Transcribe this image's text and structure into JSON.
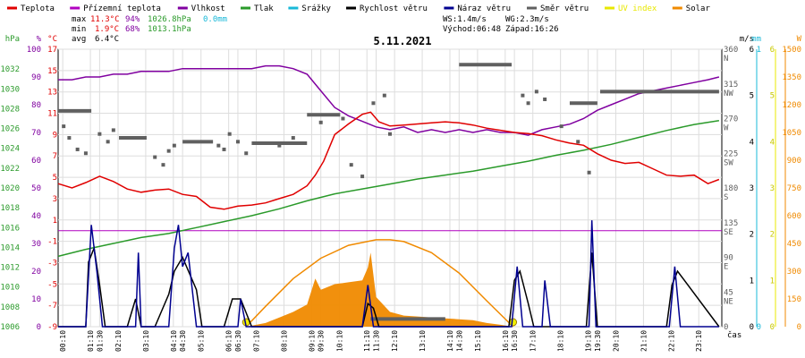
{
  "legend": [
    {
      "label": "Teplota",
      "color": "#e00000"
    },
    {
      "label": "Přízemní teplota",
      "color": "#b000c0"
    },
    {
      "label": "Vlhkost",
      "color": "#8000a0"
    },
    {
      "label": "Tlak",
      "color": "#2a9a2a"
    },
    {
      "label": "Srážky",
      "color": "#18b8d8"
    },
    {
      "label": "Rychlost větru",
      "color": "#000000"
    },
    {
      "label": "Náraz větru",
      "color": "#000090"
    },
    {
      "label": "Směr větru",
      "color": "#606060"
    },
    {
      "label": "UV index",
      "color": "#e8e800"
    },
    {
      "label": "Solar",
      "color": "#f08a00"
    }
  ],
  "stats": {
    "max_label": "max",
    "max_temp": "11.3°C",
    "max_hum": "94%",
    "max_press": "1026.8hPa",
    "max_rain": "0.0mm",
    "min_label": "min",
    "min_temp": "1.9°C",
    "min_hum": "68%",
    "min_press": "1013.1hPa",
    "avg_label": "avg",
    "avg_temp": "6.4°C",
    "ws": "WS:1.4m/s",
    "wg": "WG:2.3m/s",
    "sunrise": "Východ:06:48",
    "sunset": "Západ:16:26"
  },
  "chart_data": {
    "type": "line",
    "title": "5.11.2021",
    "xlabel": "čas",
    "x_ticks": [
      "00:10",
      "01:10",
      "01:30",
      "02:10",
      "03:10",
      "04:10",
      "04:30",
      "05:10",
      "06:10",
      "06:30",
      "07:10",
      "08:10",
      "09:10",
      "09:30",
      "10:10",
      "11:10",
      "11:30",
      "12:10",
      "13:10",
      "14:10",
      "14:30",
      "15:10",
      "16:10",
      "16:30",
      "17:10",
      "18:10",
      "19:10",
      "19:30",
      "20:10",
      "21:10",
      "22:10",
      "23:10"
    ],
    "axes": {
      "hpa": {
        "label": "hPa",
        "ticks": [
          "1006",
          "1008",
          "1010",
          "1012",
          "1014",
          "1016",
          "1018",
          "1020",
          "1022",
          "1024",
          "1026",
          "1028",
          "1030",
          "1032"
        ],
        "range": [
          1006,
          1034
        ]
      },
      "percent": {
        "label": "%",
        "ticks": [
          "0",
          "10",
          "20",
          "30",
          "40",
          "50",
          "60",
          "70",
          "80",
          "90",
          "100"
        ],
        "range": [
          0,
          100
        ]
      },
      "celsius": {
        "label": "°C",
        "ticks": [
          "-9",
          "-7",
          "-5",
          "-3",
          "-1",
          "1",
          "3",
          "5",
          "7",
          "9",
          "11",
          "13",
          "15",
          "17"
        ],
        "range": [
          -9,
          17
        ]
      },
      "direction": {
        "ticks": [
          "0",
          "45\nNE",
          "90\nE",
          "135\nSE",
          "180\nS",
          "225\nSW",
          "270\nW",
          "315\nNW",
          "360\nN"
        ],
        "range": [
          0,
          360
        ]
      },
      "ms": {
        "label": "m/s",
        "ticks": [
          "0",
          "1",
          "2",
          "3",
          "4",
          "5",
          "6"
        ],
        "range": [
          0,
          6
        ]
      },
      "mm": {
        "label": "mm",
        "ticks": [
          "0",
          "1"
        ],
        "range": [
          0,
          1
        ]
      },
      "uv": {
        "label": "",
        "ticks": [
          "0",
          "1",
          "2",
          "3",
          "4",
          "5",
          "6"
        ],
        "range": [
          0,
          6
        ]
      },
      "solar": {
        "label": "W",
        "ticks": [
          "0",
          "150",
          "300",
          "450",
          "600",
          "750",
          "900",
          "1050",
          "1200",
          "1350",
          "1500"
        ],
        "range": [
          0,
          1500
        ]
      }
    },
    "series": [
      {
        "name": "Teplota",
        "unit": "°C",
        "color": "#e00000",
        "x": [
          0,
          0.5,
          1,
          1.5,
          2,
          2.5,
          3,
          3.5,
          4,
          4.5,
          5,
          5.5,
          6,
          6.5,
          7,
          7.5,
          8,
          8.5,
          9,
          9.3,
          9.6,
          10,
          10.5,
          11,
          11.3,
          11.6,
          12,
          12.5,
          13,
          13.5,
          14,
          14.5,
          15,
          15.5,
          16,
          16.5,
          17,
          17.5,
          18,
          18.5,
          19,
          19.5,
          20,
          20.5,
          21,
          21.5,
          22,
          22.5,
          23,
          23.5,
          23.9
        ],
        "y": [
          4.4,
          4.0,
          4.5,
          5.1,
          4.6,
          3.9,
          3.6,
          3.8,
          3.9,
          3.4,
          3.2,
          2.2,
          2.0,
          2.3,
          2.4,
          2.6,
          3.0,
          3.4,
          4.2,
          5.2,
          6.5,
          9.0,
          10.0,
          10.9,
          11.1,
          10.2,
          9.8,
          9.9,
          10.0,
          10.1,
          10.2,
          10.1,
          9.9,
          9.6,
          9.4,
          9.2,
          9.1,
          8.9,
          8.5,
          8.2,
          8.0,
          7.2,
          6.6,
          6.3,
          6.4,
          5.8,
          5.2,
          5.1,
          5.2,
          4.4,
          4.8
        ]
      },
      {
        "name": "Vlhkost",
        "unit": "%",
        "color": "#8000a0",
        "x": [
          0,
          0.5,
          1,
          1.5,
          2,
          2.5,
          3,
          3.5,
          4,
          4.5,
          5,
          5.5,
          6,
          6.5,
          7,
          7.5,
          8,
          8.5,
          9,
          9.5,
          10,
          10.5,
          11,
          11.5,
          12,
          12.5,
          13,
          13.5,
          14,
          14.5,
          15,
          15.5,
          16,
          16.5,
          17,
          17.5,
          18,
          18.5,
          19,
          19.5,
          20,
          20.5,
          21,
          21.5,
          22,
          22.5,
          23,
          23.5,
          23.9
        ],
        "y": [
          89,
          89,
          90,
          90,
          91,
          91,
          92,
          92,
          92,
          93,
          93,
          93,
          93,
          93,
          93,
          94,
          94,
          93,
          91,
          85,
          79,
          76,
          74,
          72,
          71,
          72,
          70,
          71,
          70,
          71,
          70,
          71,
          70,
          70,
          69,
          71,
          72,
          73,
          75,
          78,
          80,
          82,
          84,
          85,
          86,
          87,
          88,
          89,
          90
        ]
      },
      {
        "name": "Tlak",
        "unit": "hPa",
        "color": "#2a9a2a",
        "x": [
          0,
          1,
          2,
          3,
          4,
          5,
          6,
          7,
          8,
          9,
          10,
          11,
          12,
          13,
          14,
          15,
          16,
          17,
          18,
          19,
          20,
          21,
          22,
          23,
          23.9
        ],
        "y": [
          1013.1,
          1013.8,
          1014.4,
          1015.0,
          1015.4,
          1016.0,
          1016.6,
          1017.2,
          1017.9,
          1018.7,
          1019.4,
          1019.9,
          1020.4,
          1020.9,
          1021.3,
          1021.7,
          1022.2,
          1022.7,
          1023.3,
          1023.8,
          1024.4,
          1025.1,
          1025.8,
          1026.4,
          1026.8
        ]
      },
      {
        "name": "Rychlost větru",
        "unit": "m/s",
        "color": "#000000",
        "x": [
          0,
          1.0,
          1.1,
          1.3,
          1.5,
          1.7,
          2.0,
          2.5,
          2.8,
          3.0,
          3.5,
          4.0,
          4.2,
          4.5,
          5.0,
          5.2,
          6.0,
          6.3,
          6.6,
          7.0,
          11.0,
          11.2,
          11.4,
          11.6,
          16.3,
          16.5,
          16.7,
          17.0,
          17.2,
          19.1,
          19.3,
          19.5,
          22.0,
          22.2,
          22.4,
          23.9
        ],
        "y": [
          0,
          0,
          1.4,
          1.7,
          0.9,
          0,
          0,
          0,
          0.6,
          0,
          0,
          0.7,
          1.2,
          1.5,
          0.8,
          0,
          0,
          0.6,
          0.6,
          0,
          0,
          0.5,
          0.4,
          0,
          0,
          1.0,
          1.2,
          0.5,
          0,
          0,
          1.6,
          0,
          0,
          0.9,
          1.2,
          0
        ]
      },
      {
        "name": "Náraz větru",
        "unit": "m/s",
        "color": "#000090",
        "x": [
          0,
          1.0,
          1.2,
          1.4,
          1.6,
          2.8,
          2.9,
          3.0,
          4.0,
          4.2,
          4.35,
          4.5,
          4.7,
          5.0,
          6.5,
          6.6,
          6.8,
          11.0,
          11.2,
          11.4,
          16.4,
          16.6,
          16.8,
          17.5,
          17.6,
          17.8,
          19.2,
          19.3,
          19.45,
          22.1,
          22.3,
          22.5,
          23.9
        ],
        "y": [
          0,
          0,
          2.2,
          1.2,
          0,
          0,
          1.6,
          0,
          0,
          1.7,
          2.2,
          1.3,
          1.6,
          0,
          0,
          0.6,
          0,
          0,
          0.9,
          0,
          0,
          1.3,
          0,
          0,
          1.0,
          0,
          0,
          2.3,
          0,
          0,
          1.3,
          0,
          0
        ]
      },
      {
        "name": "Směr větru",
        "unit": "°",
        "color": "#606060",
        "segments": [
          {
            "x": [
              0,
              1.2
            ],
            "y": [
              280,
              280
            ]
          },
          {
            "x": [
              2.2,
              3.2
            ],
            "y": [
              245,
              245
            ]
          },
          {
            "x": [
              4.5,
              5.6
            ],
            "y": [
              240,
              240
            ]
          },
          {
            "x": [
              7.0,
              9.0
            ],
            "y": [
              238,
              238
            ]
          },
          {
            "x": [
              9.0,
              10.2
            ],
            "y": [
              275,
              275
            ]
          },
          {
            "x": [
              14.5,
              16.4
            ],
            "y": [
              340,
              340
            ]
          },
          {
            "x": [
              18.5,
              19.5
            ],
            "y": [
              290,
              290
            ]
          },
          {
            "x": [
              19.6,
              23.9
            ],
            "y": [
              305,
              305
            ]
          },
          {
            "x": [
              11.3,
              14.0
            ],
            "y": [
              10,
              10
            ]
          }
        ],
        "points_x": [
          0.2,
          0.4,
          0.7,
          1.0,
          1.5,
          1.8,
          2.0,
          3.5,
          3.8,
          4.0,
          4.2,
          5.8,
          6.0,
          6.2,
          6.5,
          6.8,
          8.0,
          8.5,
          9.5,
          10.3,
          10.6,
          11.0,
          11.4,
          11.8,
          12.0,
          16.8,
          17.0,
          17.3,
          17.6,
          18.2,
          18.8,
          19.2
        ],
        "points_y": [
          260,
          245,
          230,
          225,
          250,
          240,
          255,
          220,
          210,
          228,
          235,
          235,
          230,
          250,
          240,
          225,
          235,
          245,
          265,
          270,
          210,
          195,
          290,
          300,
          250,
          300,
          290,
          305,
          295,
          260,
          240,
          200
        ]
      },
      {
        "name": "Solar",
        "unit": "W",
        "color": "#f08a00",
        "x": [
          6.8,
          7.5,
          8.0,
          8.5,
          9.0,
          9.3,
          9.5,
          10.0,
          10.5,
          11.0,
          11.2,
          11.3,
          11.5,
          12.0,
          12.5,
          13.0,
          13.5,
          14.0,
          14.5,
          15.0,
          15.5,
          16.0,
          16.45
        ],
        "y": [
          0,
          20,
          50,
          80,
          120,
          260,
          200,
          230,
          240,
          250,
          320,
          400,
          160,
          80,
          60,
          55,
          50,
          45,
          40,
          35,
          20,
          10,
          0
        ]
      },
      {
        "name": "Solar max",
        "unit": "W",
        "color": "#f08a00",
        "x": [
          6.8,
          7.5,
          8.5,
          9.5,
          10.5,
          11.5,
          12.0,
          12.5,
          13.5,
          14.5,
          15.5,
          16.45
        ],
        "y": [
          0,
          110,
          260,
          370,
          440,
          470,
          470,
          460,
          400,
          290,
          140,
          0
        ]
      }
    ]
  }
}
